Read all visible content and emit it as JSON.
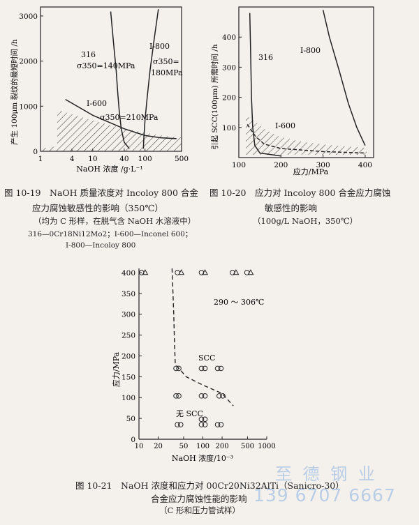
{
  "chart_data": [
    {
      "id": "fig-10-19",
      "type": "line",
      "caption": {
        "title": "图 10-19　NaOH 质量浓度对 Incoloy 800 合金",
        "title2": "应力腐蚀敏感性的影响（350℃）",
        "note": "（均为 C 形样，在脱气含 NaOH 水溶液中）",
        "legend1": "316—0Cr18Ni12Mo2；I-600—Inconel 600；",
        "legend2": "I-800—Incoloy 800"
      },
      "xlabel": "NaOH 浓度 /g·L⁻¹",
      "ylabel": "产生 100μm 裂纹的最短时间 /h",
      "xscale": "log",
      "xlim": [
        1,
        500
      ],
      "ylim": [
        0,
        3200
      ],
      "x_ticks": [
        "1",
        "4",
        "10",
        "40",
        "100",
        "500"
      ],
      "y_ticks": [
        "0",
        "1000",
        "2000",
        "3000"
      ],
      "annotations": {
        "s316": "316",
        "s316_stress": "σ350=140MPa",
        "i600": "I-600",
        "i600_stress": "σ350=210MPa",
        "i800": "I-800",
        "i800_sigma": "σ350=",
        "i800_stress": "180MPa"
      },
      "series": [
        {
          "label_key": "316",
          "x": [
            22,
            25,
            28,
            30,
            32,
            35,
            40,
            50
          ],
          "y": [
            3100,
            2400,
            1800,
            1300,
            900,
            500,
            200,
            60
          ]
        },
        {
          "label_key": "I-800",
          "x": [
            180,
            150,
            125,
            110,
            100,
            95,
            93
          ],
          "y": [
            3150,
            2500,
            1800,
            1200,
            700,
            300,
            60
          ]
        },
        {
          "label_key": "I-600",
          "x": [
            3,
            10,
            40,
            100,
            200,
            400
          ],
          "y": [
            1150,
            800,
            500,
            350,
            300,
            280
          ]
        }
      ],
      "hatched_region": "SCC zone under I-600 curve"
    },
    {
      "id": "fig-10-20",
      "type": "line",
      "caption": {
        "title": "图 10-20　应力对 Incoloy 800 合金应力腐蚀",
        "title2": "敏感性的影响",
        "note": "（100g/L NaOH，350℃）"
      },
      "xlabel": "应力/MPa",
      "ylabel": "引起 SCC(100μm) 所需时间 /h",
      "xlim": [
        100,
        420
      ],
      "ylim": [
        0,
        500
      ],
      "x_ticks": [
        "100",
        "200",
        "300",
        "400"
      ],
      "y_ticks": [
        "100",
        "200",
        "300",
        "400"
      ],
      "annotations": {
        "s316": "316",
        "i800": "I-800",
        "i600": "I-600"
      },
      "series": [
        {
          "label_key": "316",
          "x": [
            126,
            128,
            130,
            133,
            138,
            150,
            200
          ],
          "y": [
            480,
            350,
            200,
            100,
            40,
            15,
            5
          ]
        },
        {
          "label_key": "I-800",
          "x": [
            300,
            315,
            340,
            360,
            380,
            400
          ],
          "y": [
            490,
            400,
            280,
            180,
            100,
            40
          ]
        },
        {
          "label_key": "I-600",
          "x": [
            120,
            140,
            160,
            200,
            300,
            400
          ],
          "y": [
            110,
            70,
            45,
            30,
            20,
            15
          ]
        }
      ]
    },
    {
      "id": "fig-10-21",
      "type": "scatter",
      "caption": {
        "title": "图 10-21　NaOH 浓度和应力对 00Cr20Ni32AlTi（Sanicro-30）",
        "title2": "合金应力腐蚀性能的影响",
        "note": "（C 形和压力管试样）"
      },
      "xlabel": "NaOH 浓度/10⁻³",
      "ylabel": "应力/MPa",
      "xscale": "log",
      "xlim": [
        10,
        1000
      ],
      "ylim": [
        0,
        410
      ],
      "x_ticks": [
        "10",
        "20",
        "50",
        "100",
        "200",
        "500",
        "1000"
      ],
      "y_ticks": [
        "0",
        "50",
        "100",
        "150",
        "200",
        "250",
        "300",
        "350",
        "400"
      ],
      "annotations": {
        "temp": "290 ～ 306℃",
        "scc": "SCC",
        "noscc": "无 SCC"
      },
      "boundary_x": [
        33,
        35,
        36,
        37,
        55,
        100,
        200,
        300
      ],
      "boundary_y": [
        410,
        300,
        230,
        180,
        150,
        130,
        110,
        80
      ],
      "points": [
        {
          "x": 11,
          "y": 400,
          "m": "o"
        },
        {
          "x": 12.5,
          "y": 400,
          "m": "t"
        },
        {
          "x": 40,
          "y": 400,
          "m": "o"
        },
        {
          "x": 46,
          "y": 400,
          "m": "t"
        },
        {
          "x": 95,
          "y": 400,
          "m": "o"
        },
        {
          "x": 108,
          "y": 400,
          "m": "t"
        },
        {
          "x": 290,
          "y": 400,
          "m": "o"
        },
        {
          "x": 330,
          "y": 400,
          "m": "t"
        },
        {
          "x": 490,
          "y": 400,
          "m": "o"
        },
        {
          "x": 560,
          "y": 400,
          "m": "t"
        },
        {
          "x": 38,
          "y": 170,
          "m": "o"
        },
        {
          "x": 42,
          "y": 170,
          "m": "o"
        },
        {
          "x": 95,
          "y": 170,
          "m": "o"
        },
        {
          "x": 108,
          "y": 170,
          "m": "o"
        },
        {
          "x": 170,
          "y": 170,
          "m": "o"
        },
        {
          "x": 192,
          "y": 170,
          "m": "o"
        },
        {
          "x": 38,
          "y": 104,
          "m": "o"
        },
        {
          "x": 42,
          "y": 104,
          "m": "o"
        },
        {
          "x": 95,
          "y": 104,
          "m": "o"
        },
        {
          "x": 108,
          "y": 104,
          "m": "o"
        },
        {
          "x": 180,
          "y": 104,
          "m": "o"
        },
        {
          "x": 205,
          "y": 104,
          "m": "o"
        },
        {
          "x": 40,
          "y": 35,
          "m": "o"
        },
        {
          "x": 45,
          "y": 35,
          "m": "o"
        },
        {
          "x": 95,
          "y": 35,
          "m": "o"
        },
        {
          "x": 108,
          "y": 35,
          "m": "o"
        },
        {
          "x": 95,
          "y": 48,
          "m": "o"
        },
        {
          "x": 108,
          "y": 48,
          "m": "o"
        },
        {
          "x": 170,
          "y": 35,
          "m": "o"
        },
        {
          "x": 192,
          "y": 35,
          "m": "o"
        }
      ]
    }
  ],
  "watermark": {
    "company": "至 德 钢 业",
    "phone": "139 6707 6667",
    "color": "#b9cde6"
  }
}
